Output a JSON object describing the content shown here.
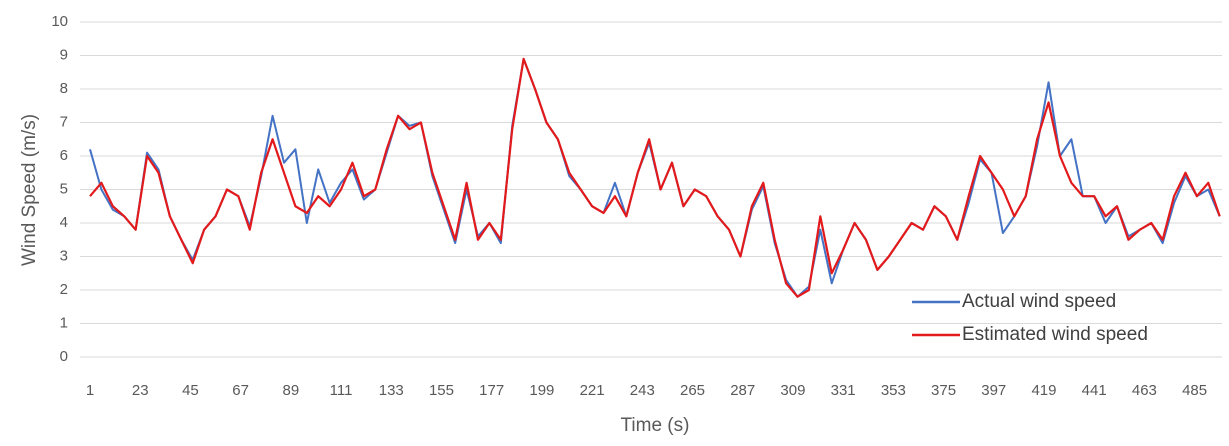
{
  "chart_data": {
    "type": "line",
    "y_label": "Wind Speed (m/s)",
    "x_label": "Time (s)",
    "x": [
      1,
      6,
      11,
      16,
      21,
      26,
      31,
      36,
      41,
      46,
      51,
      56,
      61,
      66,
      71,
      76,
      81,
      86,
      91,
      96,
      101,
      106,
      111,
      116,
      121,
      126,
      131,
      136,
      141,
      146,
      151,
      156,
      161,
      166,
      171,
      176,
      181,
      186,
      191,
      196,
      201,
      206,
      211,
      216,
      221,
      226,
      231,
      236,
      241,
      246,
      251,
      256,
      261,
      266,
      271,
      276,
      281,
      286,
      291,
      296,
      301,
      306,
      311,
      316,
      321,
      326,
      331,
      336,
      341,
      346,
      351,
      356,
      361,
      366,
      371,
      376,
      381,
      386,
      391,
      396,
      401,
      406,
      411,
      416,
      421,
      426,
      431,
      436,
      441,
      446,
      451,
      456,
      461,
      466,
      471,
      476,
      481,
      486,
      491,
      496
    ],
    "series": [
      {
        "name": "Actual wind speed",
        "color": "#4472c4",
        "values": [
          6.2,
          5.0,
          4.4,
          4.2,
          3.8,
          6.1,
          5.6,
          4.2,
          3.5,
          2.9,
          3.8,
          4.2,
          5.0,
          4.8,
          3.9,
          5.4,
          7.2,
          5.8,
          6.2,
          4.0,
          5.6,
          4.6,
          5.2,
          5.6,
          4.7,
          5.0,
          6.1,
          7.2,
          6.9,
          7.0,
          5.4,
          4.4,
          3.4,
          5.0,
          3.6,
          4.0,
          3.4,
          6.9,
          8.9,
          8.0,
          7.0,
          6.5,
          5.4,
          5.0,
          4.5,
          4.3,
          5.2,
          4.2,
          5.5,
          6.4,
          5.0,
          5.8,
          4.5,
          5.0,
          4.8,
          4.2,
          3.8,
          3.0,
          4.4,
          5.1,
          3.4,
          2.3,
          1.8,
          2.1,
          3.8,
          2.2,
          3.2,
          4.0,
          3.5,
          2.6,
          3.0,
          3.5,
          4.0,
          3.8,
          4.5,
          4.2,
          3.5,
          4.6,
          5.9,
          5.5,
          3.7,
          4.2,
          4.8,
          6.3,
          8.2,
          6.0,
          6.5,
          4.8,
          4.8,
          4.0,
          4.5,
          3.6,
          3.8,
          4.0,
          3.4,
          4.6,
          5.4,
          4.8,
          5.0,
          4.2
        ]
      },
      {
        "name": "Estimated wind speed",
        "color": "#e31a1c",
        "values": [
          4.8,
          5.2,
          4.5,
          4.2,
          3.8,
          6.0,
          5.5,
          4.2,
          3.5,
          2.8,
          3.8,
          4.2,
          5.0,
          4.8,
          3.8,
          5.5,
          6.5,
          5.5,
          4.5,
          4.3,
          4.8,
          4.5,
          5.0,
          5.8,
          4.8,
          5.0,
          6.2,
          7.2,
          6.8,
          7.0,
          5.5,
          4.5,
          3.5,
          5.2,
          3.5,
          4.0,
          3.5,
          6.8,
          8.9,
          8.0,
          7.0,
          6.5,
          5.5,
          5.0,
          4.5,
          4.3,
          4.8,
          4.2,
          5.5,
          6.5,
          5.0,
          5.8,
          4.5,
          5.0,
          4.8,
          4.2,
          3.8,
          3.0,
          4.5,
          5.2,
          3.5,
          2.2,
          1.8,
          2.0,
          4.2,
          2.5,
          3.2,
          4.0,
          3.5,
          2.6,
          3.0,
          3.5,
          4.0,
          3.8,
          4.5,
          4.2,
          3.5,
          4.8,
          6.0,
          5.5,
          5.0,
          4.2,
          4.8,
          6.5,
          7.6,
          6.0,
          5.2,
          4.8,
          4.8,
          4.2,
          4.5,
          3.5,
          3.8,
          4.0,
          3.5,
          4.8,
          5.5,
          4.8,
          5.2,
          4.2
        ]
      }
    ],
    "xlim": [
      1,
      497
    ],
    "xticks": [
      1,
      23,
      45,
      67,
      89,
      111,
      133,
      155,
      177,
      199,
      221,
      243,
      265,
      287,
      309,
      331,
      353,
      375,
      397,
      419,
      441,
      463,
      485
    ],
    "ylim": [
      0,
      10
    ],
    "yticks": [
      0,
      1,
      2,
      3,
      4,
      5,
      6,
      7,
      8,
      9,
      10
    ],
    "grid": true,
    "legend": "lower right"
  }
}
